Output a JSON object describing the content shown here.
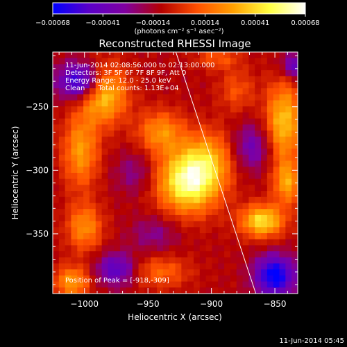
{
  "chart_data": {
    "type": "heatmap",
    "title": "Reconstructed RHESSI Image",
    "xlabel": "Heliocentric X (arcsec)",
    "ylabel": "Heliocentric Y (arcsec)",
    "xlim": [
      -1025,
      -832
    ],
    "ylim": [
      -397,
      -207
    ],
    "xticks": [
      -1000,
      -950,
      -900,
      -850
    ],
    "xtick_labels": [
      "−1000",
      "−950",
      "−900",
      "−850"
    ],
    "yticks": [
      -250,
      -300,
      -350
    ],
    "ytick_labels": [
      "−250",
      "−300",
      "−350"
    ],
    "colorbar": {
      "units": "(photons cm⁻² s⁻¹ asec⁻²)",
      "ticks": [
        -0.00068,
        -0.00041,
        -0.00014,
        0.00014,
        0.00041,
        0.00068
      ],
      "tick_labels": [
        "−0.00068",
        "−0.00041",
        "−0.00014",
        "0.00014",
        "0.00041",
        "0.00068"
      ],
      "range": [
        -0.00068,
        0.00068
      ],
      "colormap": [
        "#0000ff",
        "#5a00c8",
        "#8000a0",
        "#b40000",
        "#ff5000",
        "#ffa000",
        "#ffff40",
        "#ffffff"
      ]
    },
    "annotations": [
      "11-Jun-2014 02:08:56.000 to 02:13:00.000",
      "Detectors: 3F 5F 6F 7F 8F 9F, Att 0",
      "Energy Range: 12.0 - 25.0 keV",
      "Clean      Total counts: 1.13E+04",
      "Position of Peak = [-918,-309]"
    ],
    "peak": [
      -918,
      -309
    ],
    "limb_line": {
      "from": [
        -928,
        -207
      ],
      "to": [
        -865,
        -397
      ]
    },
    "emission_blobs": [
      {
        "x": -918,
        "y": -309,
        "sx": 17,
        "sy": 17,
        "amp": 1.0
      },
      {
        "x": -940,
        "y": -270,
        "sx": 13,
        "sy": 12,
        "amp": 0.5
      },
      {
        "x": -902,
        "y": -290,
        "sx": 14,
        "sy": 16,
        "amp": 0.45
      },
      {
        "x": -860,
        "y": -340,
        "sx": 12,
        "sy": 9,
        "amp": 0.8
      },
      {
        "x": -843,
        "y": -262,
        "sx": 10,
        "sy": 22,
        "amp": 0.7
      },
      {
        "x": -840,
        "y": -310,
        "sx": 8,
        "sy": 12,
        "amp": 0.55
      },
      {
        "x": -985,
        "y": -240,
        "sx": 13,
        "sy": 16,
        "amp": 0.75
      },
      {
        "x": -1003,
        "y": -285,
        "sx": 10,
        "sy": 20,
        "amp": 0.55
      },
      {
        "x": -1000,
        "y": -345,
        "sx": 10,
        "sy": 13,
        "amp": 0.5
      },
      {
        "x": -1010,
        "y": -388,
        "sx": 10,
        "sy": 9,
        "amp": 0.55
      },
      {
        "x": -940,
        "y": -380,
        "sx": 16,
        "sy": 9,
        "amp": 0.35
      },
      {
        "x": -880,
        "y": -237,
        "sx": 10,
        "sy": 12,
        "amp": 0.28
      },
      {
        "x": -895,
        "y": -212,
        "sx": 12,
        "sy": 6,
        "amp": 0.3
      },
      {
        "x": -1003,
        "y": -230,
        "sx": 12,
        "sy": 10,
        "amp": -0.85
      },
      {
        "x": -975,
        "y": -378,
        "sx": 11,
        "sy": 9,
        "amp": -0.55
      },
      {
        "x": -868,
        "y": -282,
        "sx": 11,
        "sy": 13,
        "amp": -0.4
      },
      {
        "x": -945,
        "y": -350,
        "sx": 13,
        "sy": 10,
        "amp": -0.25
      },
      {
        "x": -850,
        "y": -383,
        "sx": 11,
        "sy": 11,
        "amp": -0.9
      },
      {
        "x": -960,
        "y": -302,
        "sx": 11,
        "sy": 12,
        "amp": -0.25
      },
      {
        "x": -835,
        "y": -218,
        "sx": 7,
        "sy": 7,
        "amp": -0.5
      }
    ],
    "background_level": -0.15
  },
  "footer": {
    "date": "11-Jun-2014 05:45"
  }
}
